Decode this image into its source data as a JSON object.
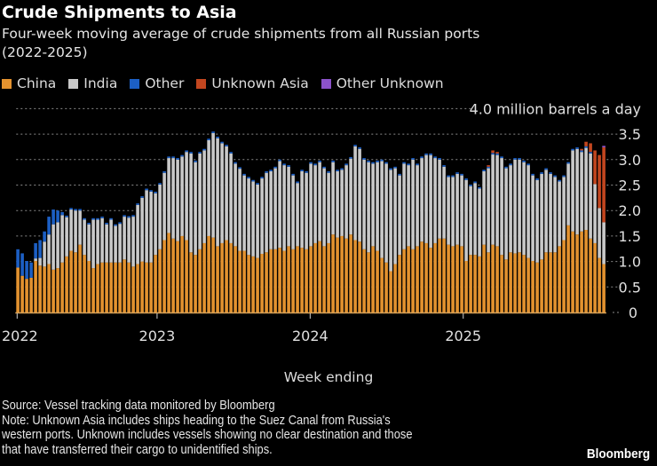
{
  "title": "Crude Shipments to Asia",
  "subtitle_line1": "Four-week moving average of crude shipments from all Russian ports",
  "subtitle_line2": "(2022-2025)",
  "footer": {
    "source": "Source: Vessel tracking data monitored by Bloomberg",
    "note": "Note: Unknown Asia includes ships heading to the Suez Canal from Russia's western ports. Unknown includes vessels showing no clear destination and those that have transferred their cargo to unidentified ships."
  },
  "logo": "Bloomberg",
  "chart_data": {
    "type": "bar",
    "stacked": true,
    "xlabel": "Week ending",
    "ylabel": "",
    "y_unit_label": "4.0 million barrels a day",
    "ylim": [
      0,
      4.0
    ],
    "yticks": [
      "0",
      "0.5",
      "1.0",
      "1.5",
      "2.0",
      "2.5",
      "3.0",
      "3.5",
      "4.0"
    ],
    "ytick_values": [
      0,
      0.5,
      1.0,
      1.5,
      2.0,
      2.5,
      3.0,
      3.5,
      4.0
    ],
    "xticks": [
      "2022",
      "2023",
      "2024",
      "2025"
    ],
    "xtick_values": [
      2022,
      2023,
      2024,
      2025
    ],
    "grid": true,
    "legend_position": "top-left",
    "x": [
      2022.08,
      2022.109,
      2022.138,
      2022.167,
      2022.196,
      2022.225,
      2022.254,
      2022.283,
      2022.312,
      2022.341,
      2022.37,
      2022.399,
      2022.428,
      2022.457,
      2022.486,
      2022.515,
      2022.544,
      2022.573,
      2022.602,
      2022.631,
      2022.66,
      2022.689,
      2022.718,
      2022.747,
      2022.776,
      2022.805,
      2022.834,
      2022.863,
      2022.892,
      2022.921,
      2022.95,
      2022.979,
      2023.008,
      2023.037,
      2023.066,
      2023.095,
      2023.124,
      2023.153,
      2023.182,
      2023.211,
      2023.24,
      2023.269,
      2023.298,
      2023.327,
      2023.356,
      2023.385,
      2023.414,
      2023.443,
      2023.472,
      2023.501,
      2023.53,
      2023.559,
      2023.588,
      2023.617,
      2023.646,
      2023.675,
      2023.704,
      2023.733,
      2023.762,
      2023.791,
      2023.82,
      2023.849,
      2023.878,
      2023.907,
      2023.936,
      2023.965,
      2023.994,
      2024.023,
      2024.052,
      2024.081,
      2024.11,
      2024.139,
      2024.168,
      2024.197,
      2024.226,
      2024.255,
      2024.284,
      2024.313,
      2024.342,
      2024.371,
      2024.4,
      2024.429,
      2024.458,
      2024.487,
      2024.516,
      2024.545,
      2024.574,
      2024.603,
      2024.632,
      2024.661,
      2024.69,
      2024.719,
      2024.748,
      2024.777,
      2024.806,
      2024.835,
      2024.864,
      2024.893,
      2024.922,
      2024.951,
      2024.98,
      2025.009,
      2025.038,
      2025.067,
      2025.096,
      2025.125,
      2025.154,
      2025.183,
      2025.212,
      2025.241,
      2025.27,
      2025.299,
      2025.328,
      2025.357,
      2025.386,
      2025.415,
      2025.444,
      2025.473,
      2025.502,
      2025.531,
      2025.56,
      2025.589,
      2025.618,
      2025.647,
      2025.676,
      2025.705,
      2025.734,
      2025.763,
      2025.792,
      2025.821,
      2025.85,
      2025.879,
      2025.908
    ],
    "series": [
      {
        "name": "China",
        "color": "#e3922f",
        "values": [
          0.88,
          0.72,
          0.66,
          0.68,
          1.01,
          0.92,
          0.9,
          0.95,
          0.84,
          0.87,
          0.98,
          1.1,
          1.21,
          1.18,
          1.33,
          1.13,
          1.01,
          0.87,
          0.95,
          0.98,
          0.98,
          0.98,
          0.98,
          0.98,
          1.04,
          0.98,
          0.9,
          0.95,
          1.0,
          0.98,
          0.98,
          1.13,
          1.24,
          1.42,
          1.56,
          1.45,
          1.4,
          1.5,
          1.42,
          1.18,
          1.13,
          1.24,
          1.36,
          1.5,
          1.47,
          1.3,
          1.36,
          1.42,
          1.36,
          1.3,
          1.21,
          1.21,
          1.13,
          1.1,
          1.07,
          1.15,
          1.18,
          1.24,
          1.24,
          1.27,
          1.21,
          1.3,
          1.24,
          1.3,
          1.27,
          1.24,
          1.3,
          1.36,
          1.4,
          1.3,
          1.36,
          1.53,
          1.47,
          1.5,
          1.45,
          1.53,
          1.42,
          1.39,
          1.24,
          1.18,
          1.3,
          1.21,
          1.07,
          0.98,
          0.81,
          0.95,
          1.13,
          1.24,
          1.3,
          1.24,
          1.3,
          1.39,
          1.36,
          1.27,
          1.36,
          1.45,
          1.45,
          1.33,
          1.3,
          1.33,
          1.3,
          1.01,
          1.13,
          1.13,
          1.1,
          1.33,
          1.18,
          1.33,
          1.3,
          1.13,
          1.04,
          1.18,
          1.16,
          1.18,
          1.13,
          1.07,
          1.01,
          0.98,
          1.04,
          1.18,
          1.18,
          1.18,
          1.3,
          1.42,
          1.71,
          1.59,
          1.53,
          1.59,
          1.62,
          1.45,
          1.36,
          1.07,
          0.95
        ]
      },
      {
        "name": "India",
        "color": "#c9c9c9",
        "values": [
          0,
          0,
          0,
          0,
          0.05,
          0.15,
          0.49,
          0.58,
          0.89,
          0.9,
          0.93,
          0.77,
          0.81,
          0.82,
          0.67,
          0.69,
          0.72,
          0.95,
          0.87,
          0.87,
          0.75,
          0.84,
          0.72,
          0.76,
          0.84,
          0.88,
          0.98,
          1.16,
          1.25,
          1.42,
          1.39,
          1.21,
          1.27,
          1.32,
          1.47,
          1.58,
          1.6,
          1.56,
          1.73,
          1.94,
          1.82,
          1.88,
          1.82,
          1.88,
          2.05,
          2.12,
          1.96,
          1.84,
          1.76,
          1.62,
          1.61,
          1.48,
          1.5,
          1.47,
          1.44,
          1.48,
          1.56,
          1.53,
          1.59,
          1.7,
          1.68,
          1.56,
          1.45,
          1.24,
          1.5,
          1.5,
          1.62,
          1.53,
          1.55,
          1.53,
          1.38,
          1.42,
          1.3,
          1.3,
          1.44,
          1.49,
          1.84,
          1.82,
          1.76,
          1.77,
          1.62,
          1.74,
          1.9,
          1.94,
          1.99,
          1.88,
          1.56,
          1.68,
          1.59,
          1.76,
          1.59,
          1.64,
          1.73,
          1.82,
          1.67,
          1.55,
          1.41,
          1.33,
          1.36,
          1.39,
          1.39,
          1.59,
          1.35,
          1.41,
          1.33,
          1.44,
          1.65,
          1.77,
          1.79,
          1.9,
          1.79,
          1.71,
          1.84,
          1.82,
          1.82,
          1.82,
          1.68,
          1.62,
          1.68,
          1.62,
          1.54,
          1.48,
          1.27,
          1.24,
          1.21,
          1.59,
          1.68,
          1.56,
          1.61,
          1.67,
          1.16,
          0.98,
          0.82
        ]
      },
      {
        "name": "Other",
        "color": "#1c5fc4",
        "values": [
          0.36,
          0.44,
          0.35,
          0.3,
          0.3,
          0.35,
          0.2,
          0.35,
          0.29,
          0.23,
          0.06,
          0.03,
          0.03,
          0.03,
          0.03,
          0.03,
          0.03,
          0.03,
          0.03,
          0.03,
          0.03,
          0.03,
          0.03,
          0.03,
          0.03,
          0.03,
          0.03,
          0.03,
          0.03,
          0.03,
          0.03,
          0.03,
          0.03,
          0.03,
          0.03,
          0.03,
          0.03,
          0.03,
          0.03,
          0.03,
          0.03,
          0.03,
          0.03,
          0.03,
          0.03,
          0.03,
          0.03,
          0.03,
          0.03,
          0.03,
          0.03,
          0.03,
          0.03,
          0.03,
          0.03,
          0.03,
          0.03,
          0.03,
          0.03,
          0.03,
          0.03,
          0.03,
          0.03,
          0.03,
          0.03,
          0.03,
          0.03,
          0.03,
          0.03,
          0.03,
          0.03,
          0.03,
          0.03,
          0.03,
          0.03,
          0.03,
          0.03,
          0.03,
          0.03,
          0.03,
          0.03,
          0.03,
          0.03,
          0.03,
          0.03,
          0.03,
          0.03,
          0.03,
          0.03,
          0.03,
          0.03,
          0.03,
          0.03,
          0.03,
          0.03,
          0.03,
          0.03,
          0.03,
          0.03,
          0.03,
          0.03,
          0.03,
          0.03,
          0.03,
          0.03,
          0.03,
          0.03,
          0.03,
          0.03,
          0.03,
          0.03,
          0.03,
          0.03,
          0.03,
          0.03,
          0.03,
          0.03,
          0.03,
          0.03,
          0.03,
          0.03,
          0.03,
          0.03,
          0.03,
          0.03,
          0.03,
          0.03,
          0.03,
          0.03,
          0.03,
          0,
          0,
          0
        ]
      },
      {
        "name": "Unknown Asia",
        "color": "#c2461f",
        "values": [
          0,
          0,
          0,
          0,
          0,
          0,
          0,
          0,
          0,
          0,
          0,
          0,
          0,
          0,
          0,
          0,
          0,
          0,
          0,
          0,
          0,
          0,
          0,
          0,
          0,
          0,
          0,
          0,
          0,
          0,
          0,
          0,
          0,
          0,
          0,
          0,
          0,
          0,
          0,
          0,
          0,
          0,
          0,
          0,
          0,
          0,
          0,
          0,
          0,
          0,
          0,
          0,
          0,
          0,
          0,
          0,
          0,
          0,
          0,
          0,
          0,
          0,
          0,
          0,
          0,
          0,
          0,
          0,
          0,
          0,
          0,
          0,
          0,
          0,
          0,
          0,
          0,
          0,
          0,
          0,
          0,
          0,
          0,
          0,
          0,
          0,
          0,
          0,
          0,
          0,
          0,
          0,
          0,
          0,
          0,
          0,
          0,
          0,
          0,
          0,
          0,
          0,
          0,
          0,
          0,
          0,
          0.03,
          0.05,
          0.03,
          0,
          0,
          0,
          0,
          0,
          0,
          0,
          0,
          0,
          0,
          0,
          0,
          0,
          0,
          0,
          0,
          0,
          0,
          0.03,
          0.09,
          0.17,
          0.66,
          1.04,
          1.47
        ]
      },
      {
        "name": "Other Unknown",
        "color": "#8b52c9",
        "values": [
          0,
          0,
          0,
          0,
          0,
          0,
          0,
          0,
          0,
          0,
          0,
          0,
          0,
          0,
          0,
          0,
          0,
          0,
          0,
          0,
          0,
          0,
          0,
          0,
          0,
          0,
          0,
          0,
          0,
          0,
          0,
          0,
          0,
          0,
          0,
          0,
          0,
          0,
          0,
          0,
          0,
          0,
          0,
          0,
          0,
          0,
          0,
          0,
          0,
          0,
          0,
          0,
          0,
          0,
          0,
          0,
          0,
          0,
          0,
          0,
          0,
          0,
          0,
          0,
          0,
          0,
          0,
          0,
          0,
          0,
          0,
          0,
          0,
          0,
          0,
          0,
          0,
          0,
          0,
          0,
          0,
          0,
          0,
          0,
          0,
          0,
          0,
          0,
          0,
          0,
          0,
          0,
          0,
          0,
          0,
          0,
          0,
          0,
          0,
          0,
          0,
          0,
          0,
          0,
          0,
          0,
          0,
          0,
          0,
          0,
          0,
          0,
          0,
          0,
          0,
          0,
          0,
          0,
          0,
          0,
          0,
          0,
          0,
          0,
          0,
          0,
          0,
          0,
          0,
          0,
          0,
          0,
          0.03
        ]
      }
    ]
  }
}
